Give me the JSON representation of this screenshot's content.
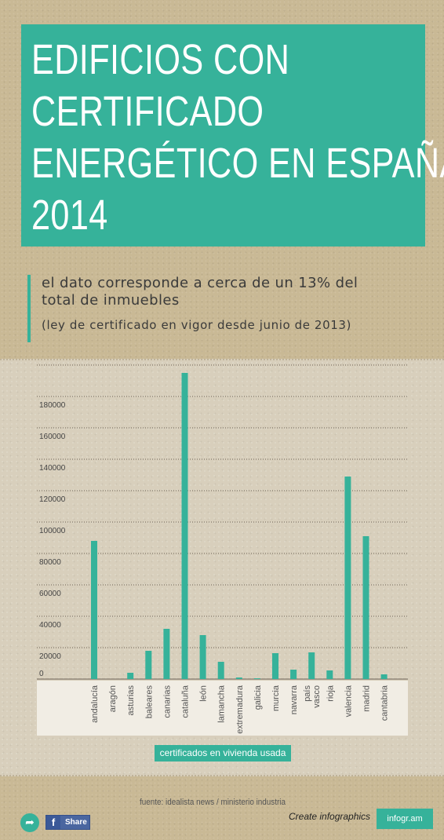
{
  "header": {
    "title_lines": [
      "EDIFICIOS CON",
      "CERTIFICADO",
      "ENERGÉTICO EN ESPAÑA",
      "2014"
    ]
  },
  "subtitle": {
    "main_line1": "el dato corresponde a cerca de un 13% del",
    "main_line2": "total de inmuebles",
    "note": "(ley de certificado en vigor desde junio de 2013)"
  },
  "footer": {
    "source": "fuente: idealista news / ministerio industria",
    "share_label": "Share",
    "create_label": "Create infographics",
    "brand": "infogr.am"
  },
  "colors": {
    "accent": "#36b29a"
  },
  "chart_data": {
    "type": "bar",
    "categories": [
      "andalucía",
      "aragón",
      "asturias",
      "baleares",
      "canarias",
      "cataluña",
      "león",
      "lamancha",
      "extremadura",
      "galicia",
      "murcia",
      "navarra",
      "país vasco",
      "rioja",
      "valencia",
      "madrid",
      "cantabria"
    ],
    "series": [
      {
        "name": "certificados en vivienda usada",
        "values": [
          88000,
          0,
          4000,
          18000,
          32000,
          195000,
          28000,
          11000,
          1000,
          500,
          16500,
          6000,
          17000,
          5500,
          129000,
          91000,
          3000
        ]
      }
    ],
    "y_ticks": [
      "0",
      "20000",
      "40000",
      "60000",
      "80000",
      "100000",
      "120000",
      "140000",
      "160000",
      "180000"
    ],
    "ylim": [
      0,
      195000
    ],
    "grid": true,
    "legend": "bottom"
  }
}
